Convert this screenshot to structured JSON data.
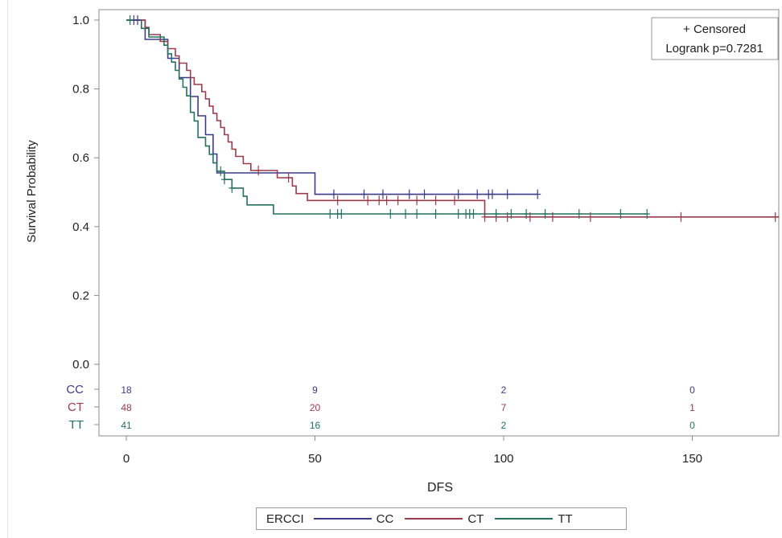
{
  "chart_data": {
    "type": "line",
    "subtype": "kaplan-meier step survival curves",
    "xlabel": "DFS",
    "ylabel": "Survival Probability",
    "xlim": [
      0,
      175
    ],
    "ylim": [
      0,
      1.0
    ],
    "x_ticks": [
      "0",
      "50",
      "100",
      "150"
    ],
    "y_ticks": [
      "0.0",
      "0.2",
      "0.4",
      "0.6",
      "0.8",
      "1.0"
    ],
    "grid": false,
    "inset_legend": {
      "position": "top-right",
      "censored_label": "+ Censored",
      "stat_label": "Logrank p=0.7281"
    },
    "legend": {
      "position": "bottom",
      "title": "ERCCI"
    },
    "series": [
      {
        "name": "CC",
        "color": "#3b3b8a",
        "steps": [
          [
            0,
            1.0
          ],
          [
            5,
            1.0
          ],
          [
            5,
            0.944
          ],
          [
            11,
            0.944
          ],
          [
            11,
            0.889
          ],
          [
            14,
            0.889
          ],
          [
            14,
            0.833
          ],
          [
            17,
            0.833
          ],
          [
            17,
            0.778
          ],
          [
            19,
            0.778
          ],
          [
            19,
            0.722
          ],
          [
            21,
            0.722
          ],
          [
            21,
            0.667
          ],
          [
            23,
            0.667
          ],
          [
            23,
            0.611
          ],
          [
            24,
            0.611
          ],
          [
            24,
            0.556
          ],
          [
            50,
            0.556
          ],
          [
            50,
            0.494
          ],
          [
            109,
            0.494
          ]
        ],
        "censored": [
          2,
          3,
          55,
          63,
          68,
          75,
          79,
          88,
          93,
          96,
          97,
          101,
          109
        ]
      },
      {
        "name": "CT",
        "color": "#9b3a4a",
        "steps": [
          [
            0,
            1.0
          ],
          [
            5,
            1.0
          ],
          [
            5,
            0.979
          ],
          [
            6,
            0.979
          ],
          [
            6,
            0.958
          ],
          [
            9,
            0.958
          ],
          [
            9,
            0.938
          ],
          [
            11,
            0.938
          ],
          [
            11,
            0.917
          ],
          [
            13,
            0.917
          ],
          [
            13,
            0.896
          ],
          [
            14,
            0.896
          ],
          [
            14,
            0.875
          ],
          [
            16,
            0.875
          ],
          [
            16,
            0.854
          ],
          [
            17,
            0.854
          ],
          [
            17,
            0.833
          ],
          [
            18,
            0.833
          ],
          [
            18,
            0.813
          ],
          [
            20,
            0.813
          ],
          [
            20,
            0.792
          ],
          [
            21,
            0.792
          ],
          [
            21,
            0.771
          ],
          [
            22,
            0.771
          ],
          [
            22,
            0.75
          ],
          [
            23,
            0.75
          ],
          [
            23,
            0.729
          ],
          [
            24,
            0.729
          ],
          [
            24,
            0.708
          ],
          [
            25,
            0.708
          ],
          [
            25,
            0.688
          ],
          [
            26,
            0.688
          ],
          [
            26,
            0.667
          ],
          [
            27,
            0.667
          ],
          [
            27,
            0.646
          ],
          [
            28,
            0.646
          ],
          [
            28,
            0.625
          ],
          [
            29,
            0.625
          ],
          [
            29,
            0.604
          ],
          [
            31,
            0.604
          ],
          [
            31,
            0.583
          ],
          [
            33,
            0.583
          ],
          [
            33,
            0.563
          ],
          [
            40,
            0.563
          ],
          [
            40,
            0.542
          ],
          [
            44,
            0.542
          ],
          [
            44,
            0.518
          ],
          [
            45,
            0.518
          ],
          [
            45,
            0.496
          ],
          [
            48,
            0.496
          ],
          [
            48,
            0.476
          ],
          [
            95,
            0.476
          ],
          [
            95,
            0.428
          ],
          [
            173,
            0.428
          ]
        ],
        "censored": [
          35,
          43,
          56,
          64,
          67,
          69,
          72,
          77,
          82,
          87,
          95,
          98,
          101,
          107,
          113,
          123,
          147,
          172
        ]
      },
      {
        "name": "TT",
        "color": "#24715f",
        "steps": [
          [
            0,
            1.0
          ],
          [
            4,
            1.0
          ],
          [
            4,
            0.976
          ],
          [
            6,
            0.976
          ],
          [
            6,
            0.951
          ],
          [
            10,
            0.951
          ],
          [
            10,
            0.927
          ],
          [
            11,
            0.927
          ],
          [
            11,
            0.902
          ],
          [
            12,
            0.902
          ],
          [
            12,
            0.878
          ],
          [
            13,
            0.878
          ],
          [
            13,
            0.854
          ],
          [
            14,
            0.854
          ],
          [
            14,
            0.829
          ],
          [
            15,
            0.829
          ],
          [
            15,
            0.805
          ],
          [
            16,
            0.805
          ],
          [
            16,
            0.78
          ],
          [
            17,
            0.78
          ],
          [
            17,
            0.732
          ],
          [
            18,
            0.732
          ],
          [
            18,
            0.707
          ],
          [
            19,
            0.707
          ],
          [
            19,
            0.659
          ],
          [
            21,
            0.659
          ],
          [
            21,
            0.634
          ],
          [
            22,
            0.634
          ],
          [
            22,
            0.61
          ],
          [
            23,
            0.61
          ],
          [
            23,
            0.585
          ],
          [
            24,
            0.585
          ],
          [
            24,
            0.561
          ],
          [
            26,
            0.561
          ],
          [
            26,
            0.537
          ],
          [
            28,
            0.537
          ],
          [
            28,
            0.512
          ],
          [
            31,
            0.512
          ],
          [
            31,
            0.488
          ],
          [
            32,
            0.488
          ],
          [
            32,
            0.463
          ],
          [
            39,
            0.463
          ],
          [
            39,
            0.437
          ],
          [
            138,
            0.437
          ]
        ],
        "censored": [
          1,
          25,
          26,
          28,
          54,
          56,
          57,
          70,
          74,
          77,
          82,
          88,
          90,
          91,
          92,
          98,
          102,
          106,
          111,
          120,
          131,
          138
        ]
      }
    ],
    "at_risk": {
      "x": [
        0,
        50,
        100,
        150
      ],
      "rows": [
        {
          "name": "CC",
          "color": "#3b3b8a",
          "values": [
            "18",
            "9",
            "2",
            "0"
          ]
        },
        {
          "name": "CT",
          "color": "#9b3a4a",
          "values": [
            "48",
            "20",
            "7",
            "1"
          ]
        },
        {
          "name": "TT",
          "color": "#24715f",
          "values": [
            "41",
            "16",
            "2",
            "0"
          ]
        }
      ]
    }
  }
}
